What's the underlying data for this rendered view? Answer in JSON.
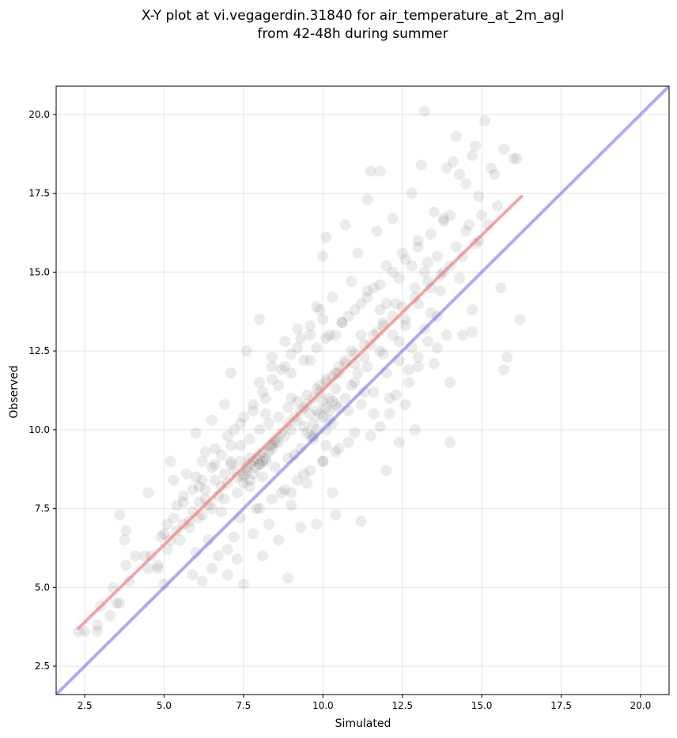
{
  "chart_data": {
    "type": "scatter",
    "title_line1": "X-Y plot at vi.vegagerdin.31840 for air_temperature_at_2m_agl",
    "title_line2": "from 42-48h during summer",
    "xlabel": "Simulated",
    "ylabel": "Observed",
    "xlim": [
      1.6,
      20.9
    ],
    "ylim": [
      1.6,
      20.9
    ],
    "x_ticks": [
      2.5,
      5.0,
      7.5,
      10.0,
      12.5,
      15.0,
      17.5,
      20.0
    ],
    "y_ticks": [
      2.5,
      5.0,
      7.5,
      10.0,
      12.5,
      15.0,
      17.5,
      20.0
    ],
    "x_tick_labels": [
      "2.5",
      "5.0",
      "7.5",
      "10.0",
      "12.5",
      "15.0",
      "17.5",
      "20.0"
    ],
    "y_tick_labels": [
      "2.5",
      "5.0",
      "7.5",
      "10.0",
      "12.5",
      "15.0",
      "17.5",
      "20.0"
    ],
    "grid": true,
    "point_color": "#000000",
    "point_opacity": 0.08,
    "points": [
      [
        2.3,
        3.6
      ],
      [
        2.5,
        3.6
      ],
      [
        2.9,
        3.6
      ],
      [
        3.0,
        4.4
      ],
      [
        2.9,
        3.8
      ],
      [
        3.3,
        4.1
      ],
      [
        3.4,
        5.0
      ],
      [
        3.5,
        4.5
      ],
      [
        3.6,
        4.5
      ],
      [
        3.6,
        7.3
      ],
      [
        3.8,
        6.8
      ],
      [
        3.75,
        6.5
      ],
      [
        3.8,
        5.7
      ],
      [
        3.9,
        5.2
      ],
      [
        4.1,
        6.0
      ],
      [
        4.4,
        6.0
      ],
      [
        4.5,
        8.0
      ],
      [
        4.5,
        5.6
      ],
      [
        4.6,
        6.0
      ],
      [
        4.8,
        5.6
      ],
      [
        4.8,
        5.7
      ],
      [
        5.0,
        5.1
      ],
      [
        5.0,
        6.7
      ],
      [
        5.1,
        7.0
      ],
      [
        5.2,
        9.0
      ],
      [
        5.2,
        6.5
      ],
      [
        5.3,
        8.4
      ],
      [
        5.4,
        7.6
      ],
      [
        5.6,
        7.9
      ],
      [
        5.7,
        8.6
      ],
      [
        5.8,
        7.1
      ],
      [
        5.9,
        5.4
      ],
      [
        6.0,
        9.9
      ],
      [
        6.0,
        6.1
      ],
      [
        6.1,
        8.2
      ],
      [
        6.2,
        5.2
      ],
      [
        6.2,
        7.3
      ],
      [
        6.3,
        9.3
      ],
      [
        6.4,
        6.5
      ],
      [
        6.5,
        10.3
      ],
      [
        6.5,
        5.6
      ],
      [
        6.6,
        8.9
      ],
      [
        6.7,
        6.0
      ],
      [
        6.8,
        7.4
      ],
      [
        6.9,
        10.8
      ],
      [
        7.0,
        5.4
      ],
      [
        7.0,
        6.2
      ],
      [
        7.1,
        9.5
      ],
      [
        7.1,
        11.8
      ],
      [
        7.2,
        6.6
      ],
      [
        7.3,
        5.9
      ],
      [
        7.4,
        7.2
      ],
      [
        7.5,
        5.1
      ],
      [
        7.5,
        8.5
      ],
      [
        7.6,
        12.5
      ],
      [
        7.7,
        9.1
      ],
      [
        7.8,
        6.7
      ],
      [
        7.9,
        7.5
      ],
      [
        8.0,
        13.5
      ],
      [
        8.0,
        8.9
      ],
      [
        8.1,
        6.0
      ],
      [
        8.2,
        10.5
      ],
      [
        8.3,
        7.0
      ],
      [
        8.4,
        12.0
      ],
      [
        8.5,
        9.6
      ],
      [
        8.6,
        6.5
      ],
      [
        8.7,
        8.0
      ],
      [
        8.8,
        12.8
      ],
      [
        8.9,
        5.3
      ],
      [
        9.0,
        11.0
      ],
      [
        9.0,
        7.6
      ],
      [
        9.1,
        9.2
      ],
      [
        9.2,
        13.2
      ],
      [
        9.3,
        6.9
      ],
      [
        9.4,
        10.7
      ],
      [
        9.5,
        8.3
      ],
      [
        9.6,
        12.2
      ],
      [
        9.7,
        9.8
      ],
      [
        9.8,
        7.0
      ],
      [
        9.8,
        13.9
      ],
      [
        9.9,
        11.4
      ],
      [
        10.0,
        9.0
      ],
      [
        10.0,
        15.5
      ],
      [
        10.1,
        16.1
      ],
      [
        10.1,
        12.9
      ],
      [
        10.2,
        10.3
      ],
      [
        10.3,
        8.0
      ],
      [
        10.3,
        14.2
      ],
      [
        10.4,
        7.3
      ],
      [
        10.5,
        11.8
      ],
      [
        10.5,
        9.4
      ],
      [
        10.6,
        13.4
      ],
      [
        10.7,
        16.5
      ],
      [
        10.8,
        10.6
      ],
      [
        10.9,
        14.7
      ],
      [
        11.0,
        12.1
      ],
      [
        11.0,
        9.9
      ],
      [
        11.1,
        15.6
      ],
      [
        11.2,
        7.1
      ],
      [
        11.2,
        13.0
      ],
      [
        11.3,
        11.2
      ],
      [
        11.4,
        17.3
      ],
      [
        11.4,
        14.4
      ],
      [
        11.5,
        18.2
      ],
      [
        11.6,
        10.5
      ],
      [
        11.7,
        16.3
      ],
      [
        11.8,
        13.8
      ],
      [
        11.8,
        18.2
      ],
      [
        11.9,
        12.4
      ],
      [
        12.0,
        15.2
      ],
      [
        12.0,
        8.7
      ],
      [
        12.1,
        11.0
      ],
      [
        12.2,
        16.7
      ],
      [
        12.3,
        14.0
      ],
      [
        12.4,
        12.8
      ],
      [
        12.4,
        9.6
      ],
      [
        12.5,
        15.6
      ],
      [
        12.6,
        13.3
      ],
      [
        12.7,
        11.5
      ],
      [
        12.8,
        17.5
      ],
      [
        12.9,
        14.5
      ],
      [
        12.9,
        10.0
      ],
      [
        13.0,
        16.0
      ],
      [
        13.0,
        12.0
      ],
      [
        13.1,
        18.4
      ],
      [
        13.2,
        20.1
      ],
      [
        13.3,
        15.3
      ],
      [
        13.4,
        13.7
      ],
      [
        13.5,
        16.9
      ],
      [
        13.6,
        12.6
      ],
      [
        13.7,
        14.4
      ],
      [
        13.8,
        16.7
      ],
      [
        13.9,
        18.3
      ],
      [
        14.0,
        11.5
      ],
      [
        14.0,
        9.6
      ],
      [
        14.0,
        16.8
      ],
      [
        14.1,
        18.5
      ],
      [
        14.2,
        19.3
      ],
      [
        14.3,
        18.1
      ],
      [
        14.3,
        14.8
      ],
      [
        14.4,
        13.0
      ],
      [
        14.5,
        17.8
      ],
      [
        14.6,
        16.5
      ],
      [
        14.7,
        18.7
      ],
      [
        14.7,
        13.1
      ],
      [
        14.7,
        13.8
      ],
      [
        14.8,
        19.0
      ],
      [
        14.9,
        17.4
      ],
      [
        15.0,
        16.8
      ],
      [
        15.1,
        19.8
      ],
      [
        15.3,
        18.3
      ],
      [
        15.4,
        18.1
      ],
      [
        15.5,
        17.1
      ],
      [
        15.6,
        14.5
      ],
      [
        15.7,
        11.9
      ],
      [
        15.7,
        18.9
      ],
      [
        15.8,
        12.3
      ],
      [
        16.0,
        18.6
      ],
      [
        16.1,
        18.6
      ],
      [
        16.2,
        13.5
      ],
      [
        6.0,
        8.5
      ],
      [
        6.3,
        7.8
      ],
      [
        6.8,
        8.2
      ],
      [
        7.2,
        8.7
      ],
      [
        7.4,
        9.0
      ],
      [
        7.6,
        8.8
      ],
      [
        7.8,
        9.0
      ],
      [
        8.0,
        9.2
      ],
      [
        8.2,
        9.0
      ],
      [
        8.4,
        9.4
      ],
      [
        8.6,
        9.6
      ],
      [
        8.8,
        9.8
      ],
      [
        9.0,
        10.0
      ],
      [
        9.2,
        10.3
      ],
      [
        9.4,
        10.1
      ],
      [
        9.6,
        10.5
      ],
      [
        9.8,
        10.6
      ],
      [
        10.0,
        10.9
      ],
      [
        10.2,
        11.0
      ],
      [
        10.4,
        11.3
      ],
      [
        7.0,
        8.3
      ],
      [
        7.3,
        8.5
      ],
      [
        7.5,
        8.6
      ],
      [
        7.7,
        8.9
      ],
      [
        7.9,
        9.1
      ],
      [
        8.1,
        9.3
      ],
      [
        8.3,
        9.5
      ],
      [
        8.5,
        9.7
      ],
      [
        8.7,
        9.9
      ],
      [
        8.9,
        10.2
      ],
      [
        9.1,
        10.4
      ],
      [
        9.3,
        10.6
      ],
      [
        9.5,
        10.8
      ],
      [
        9.7,
        11.0
      ],
      [
        9.9,
        11.2
      ],
      [
        10.1,
        11.5
      ],
      [
        10.3,
        11.7
      ],
      [
        10.5,
        12.0
      ],
      [
        10.7,
        12.2
      ],
      [
        10.9,
        12.5
      ],
      [
        6.5,
        7.5
      ],
      [
        6.9,
        7.8
      ],
      [
        7.3,
        8.0
      ],
      [
        7.7,
        8.2
      ],
      [
        8.1,
        8.5
      ],
      [
        8.5,
        8.8
      ],
      [
        8.9,
        9.1
      ],
      [
        9.3,
        9.4
      ],
      [
        9.7,
        9.7
      ],
      [
        10.1,
        10.0
      ],
      [
        6.2,
        9.0
      ],
      [
        6.6,
        9.4
      ],
      [
        7.0,
        9.8
      ],
      [
        7.4,
        10.2
      ],
      [
        7.8,
        10.6
      ],
      [
        8.2,
        11.0
      ],
      [
        8.6,
        11.4
      ],
      [
        9.0,
        11.8
      ],
      [
        9.4,
        12.2
      ],
      [
        9.8,
        12.6
      ],
      [
        10.2,
        13.0
      ],
      [
        10.6,
        13.4
      ],
      [
        11.0,
        13.8
      ],
      [
        11.4,
        14.2
      ],
      [
        11.8,
        14.6
      ],
      [
        12.2,
        15.0
      ],
      [
        12.6,
        15.4
      ],
      [
        13.0,
        15.8
      ],
      [
        13.4,
        16.2
      ],
      [
        13.8,
        16.6
      ],
      [
        8.0,
        11.5
      ],
      [
        8.4,
        12.3
      ],
      [
        8.8,
        12.0
      ],
      [
        9.2,
        12.6
      ],
      [
        9.6,
        13.0
      ],
      [
        10.0,
        13.5
      ],
      [
        10.4,
        13.0
      ],
      [
        10.8,
        13.6
      ],
      [
        11.2,
        14.0
      ],
      [
        11.6,
        14.5
      ],
      [
        12.0,
        14.0
      ],
      [
        12.4,
        14.8
      ],
      [
        12.8,
        15.2
      ],
      [
        13.2,
        15.0
      ],
      [
        13.6,
        15.5
      ],
      [
        11.0,
        11.5
      ],
      [
        11.4,
        12.0
      ],
      [
        11.8,
        12.5
      ],
      [
        12.2,
        13.0
      ],
      [
        12.6,
        13.5
      ],
      [
        13.0,
        14.0
      ],
      [
        13.4,
        14.5
      ],
      [
        13.8,
        15.0
      ],
      [
        11.2,
        10.8
      ],
      [
        11.6,
        11.2
      ],
      [
        12.0,
        11.8
      ],
      [
        12.4,
        12.2
      ],
      [
        12.8,
        12.6
      ],
      [
        13.2,
        13.2
      ],
      [
        13.6,
        13.6
      ],
      [
        8.0,
        7.5
      ],
      [
        8.4,
        7.8
      ],
      [
        8.8,
        8.1
      ],
      [
        9.2,
        8.4
      ],
      [
        9.6,
        8.7
      ],
      [
        10.0,
        9.0
      ],
      [
        10.4,
        9.3
      ],
      [
        10.8,
        9.6
      ],
      [
        9.0,
        8.0
      ],
      [
        9.4,
        8.6
      ],
      [
        5.5,
        6.5
      ],
      [
        5.8,
        6.9
      ],
      [
        6.1,
        7.2
      ],
      [
        6.4,
        7.6
      ],
      [
        6.7,
        7.9
      ],
      [
        5.3,
        7.2
      ],
      [
        5.6,
        7.7
      ],
      [
        5.9,
        8.1
      ],
      [
        6.2,
        8.4
      ],
      [
        6.5,
        8.8
      ],
      [
        7.2,
        10.0
      ],
      [
        7.5,
        10.4
      ],
      [
        7.8,
        10.8
      ],
      [
        8.1,
        11.2
      ],
      [
        8.4,
        11.6
      ],
      [
        8.7,
        11.9
      ],
      [
        9.0,
        12.4
      ],
      [
        9.3,
        12.9
      ],
      [
        9.6,
        13.3
      ],
      [
        9.9,
        13.8
      ],
      [
        10.1,
        9.5
      ],
      [
        10.3,
        10.2
      ],
      [
        10.5,
        10.7
      ],
      [
        10.7,
        11.0
      ],
      [
        10.9,
        11.4
      ],
      [
        11.1,
        11.8
      ],
      [
        11.3,
        12.3
      ],
      [
        11.5,
        12.7
      ],
      [
        11.7,
        13.1
      ],
      [
        11.9,
        13.4
      ],
      [
        6.8,
        9.2
      ],
      [
        7.1,
        9.0
      ],
      [
        7.4,
        9.5
      ],
      [
        7.7,
        9.7
      ],
      [
        8.0,
        10.0
      ],
      [
        8.3,
        10.2
      ],
      [
        8.6,
        10.4
      ],
      [
        8.9,
        10.7
      ],
      [
        9.2,
        10.9
      ],
      [
        9.5,
        11.1
      ],
      [
        9.8,
        11.3
      ],
      [
        10.1,
        11.6
      ],
      [
        10.4,
        11.8
      ],
      [
        10.7,
        12.1
      ],
      [
        11.0,
        12.4
      ],
      [
        11.3,
        12.7
      ],
      [
        11.6,
        13.0
      ],
      [
        11.9,
        13.3
      ],
      [
        12.2,
        13.6
      ],
      [
        12.5,
        13.9
      ],
      [
        4.9,
        6.6
      ],
      [
        5.1,
        6.2
      ],
      [
        5.4,
        6.8
      ],
      [
        5.6,
        7.0
      ],
      [
        5.9,
        7.4
      ],
      [
        6.1,
        7.7
      ],
      [
        6.3,
        8.1
      ],
      [
        6.6,
        8.4
      ],
      [
        6.9,
        8.6
      ],
      [
        7.1,
        8.9
      ],
      [
        9.5,
        9.9
      ],
      [
        9.7,
        10.2
      ],
      [
        9.9,
        10.5
      ],
      [
        10.1,
        10.7
      ],
      [
        10.3,
        10.9
      ],
      [
        10.0,
        10.4
      ],
      [
        10.2,
        10.6
      ],
      [
        9.8,
        10.0
      ],
      [
        9.6,
        9.8
      ],
      [
        10.4,
        10.8
      ],
      [
        7.9,
        8.8
      ],
      [
        8.1,
        9.0
      ],
      [
        7.8,
        8.6
      ],
      [
        8.0,
        8.9
      ],
      [
        7.6,
        8.7
      ],
      [
        8.2,
        9.1
      ],
      [
        7.7,
        8.4
      ],
      [
        8.3,
        9.3
      ],
      [
        7.5,
        8.3
      ],
      [
        8.4,
        9.5
      ],
      [
        12.1,
        10.5
      ],
      [
        12.3,
        11.1
      ],
      [
        12.7,
        11.9
      ],
      [
        13.0,
        12.3
      ],
      [
        13.3,
        12.8
      ],
      [
        13.5,
        12.1
      ],
      [
        13.9,
        13.0
      ],
      [
        12.6,
        10.8
      ],
      [
        11.8,
        10.1
      ],
      [
        11.5,
        9.8
      ],
      [
        14.2,
        15.8
      ],
      [
        14.5,
        16.3
      ],
      [
        14.9,
        16.0
      ],
      [
        15.2,
        16.5
      ],
      [
        14.0,
        15.2
      ],
      [
        13.7,
        14.9
      ],
      [
        14.4,
        15.5
      ],
      [
        12.9,
        14.2
      ],
      [
        13.3,
        14.7
      ],
      [
        14.8,
        15.9
      ]
    ],
    "fit_line": {
      "x": [
        2.3,
        16.25
      ],
      "y": [
        3.7,
        17.4
      ],
      "color": "#f08080",
      "opacity": 0.7
    },
    "identity_line": {
      "x": [
        1.6,
        20.9
      ],
      "y": [
        1.6,
        20.9
      ],
      "color": "#6666ee",
      "opacity": 0.55
    }
  }
}
